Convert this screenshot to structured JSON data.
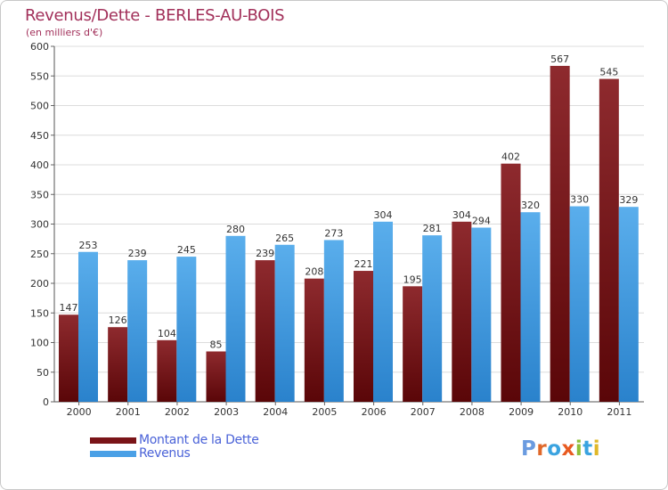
{
  "header": {
    "title": "Revenus/Dette - BERLES-AU-BOIS",
    "subtitle": "(en milliers d'€)"
  },
  "legend": {
    "items": [
      {
        "label": "Montant de la Dette",
        "color": "#7a1418"
      },
      {
        "label": "Revenus",
        "color": "#4aa0e6"
      }
    ]
  },
  "logo": {
    "text": "Proxiti",
    "colors": [
      "#6a9be0",
      "#e0682a",
      "#3aa3e0",
      "#e85a20",
      "#8fbf3a",
      "#3aa3e0",
      "#e0b82a"
    ]
  },
  "chart_data": {
    "type": "bar",
    "title": "Revenus/Dette - BERLES-AU-BOIS",
    "subtitle": "(en milliers d'€)",
    "xlabel": "",
    "ylabel": "",
    "categories": [
      "2000",
      "2001",
      "2002",
      "2003",
      "2004",
      "2005",
      "2006",
      "2007",
      "2008",
      "2009",
      "2010",
      "2011"
    ],
    "series": [
      {
        "name": "Montant de la Dette",
        "color": "#7a1418",
        "values": [
          147,
          126,
          104,
          85,
          239,
          208,
          221,
          195,
          304,
          402,
          567,
          545
        ]
      },
      {
        "name": "Revenus",
        "color": "#4aa0e6",
        "values": [
          253,
          239,
          245,
          280,
          265,
          273,
          304,
          281,
          294,
          320,
          330,
          329
        ]
      }
    ],
    "ylim": [
      0,
      600
    ],
    "yticks": [
      0,
      50,
      100,
      150,
      200,
      250,
      300,
      350,
      400,
      450,
      500,
      550,
      600
    ],
    "grid": true,
    "legend_position": "bottom-left"
  }
}
